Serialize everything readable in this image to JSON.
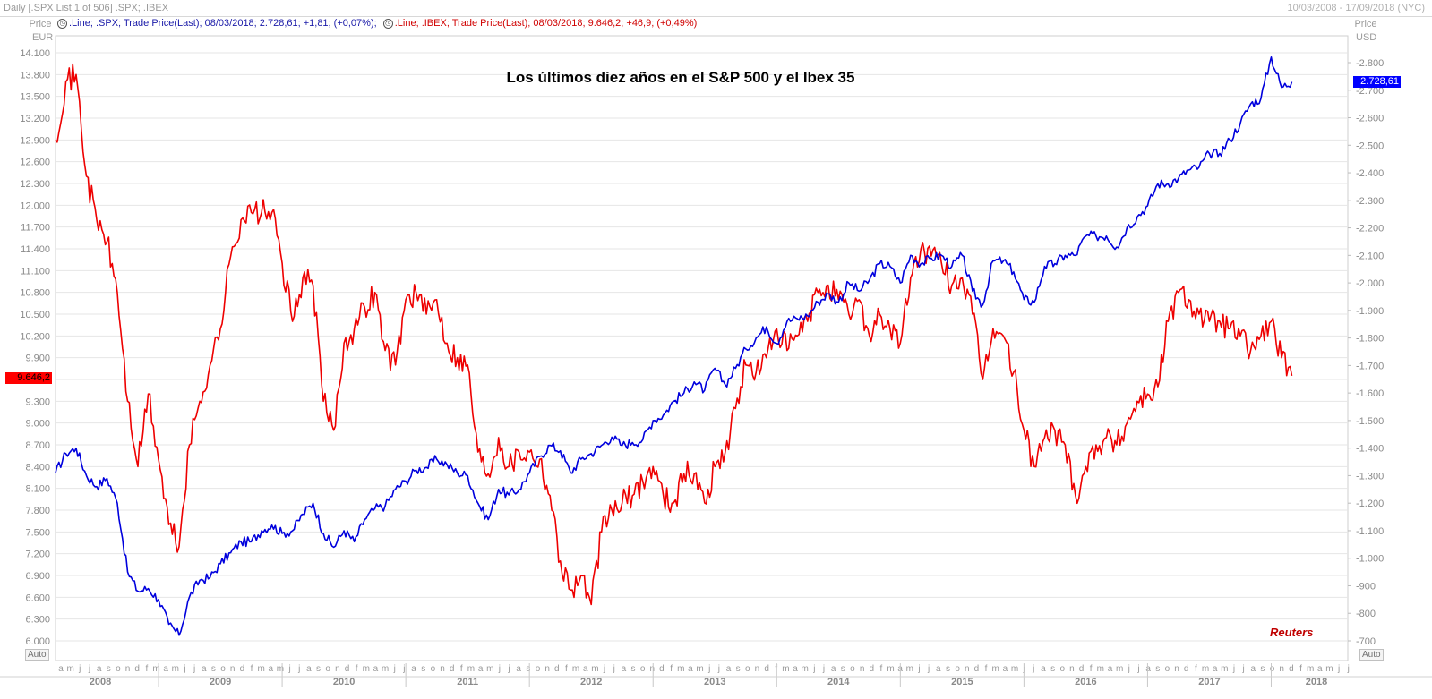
{
  "window": {
    "title_left": "Daily [.SPX List 1 of 506] .SPX; .IBEX",
    "title_right": "10/03/2008 - 17/09/2018 (NYC)"
  },
  "legend": {
    "spx": ".Line; .SPX; Trade Price(Last); 08/03/2018; 2.728,61; +1,81; (+0,07%);",
    "ibex": ".Line; .IBEX; Trade Price(Last); 08/03/2018; 9.646,2; +46,9; (+0,49%)"
  },
  "axis": {
    "left_header": "Price",
    "left_unit": "EUR",
    "right_header": "Price",
    "right_unit": "USD",
    "auto_label": "Auto"
  },
  "tags": {
    "ibex_last": "9.646,2",
    "spx_last": "2.728,61"
  },
  "source": "Reuters",
  "colors": {
    "ibex": "#ee0000",
    "spx": "#0000dd",
    "grid": "#e6e6e6"
  },
  "chart_data": {
    "type": "line",
    "title": "Los últimos diez años en el S&P 500 y el Ibex 35",
    "x_range": [
      "2008-03",
      "2018-08"
    ],
    "y_left": {
      "label": "Price EUR",
      "min": 6000,
      "max": 14100,
      "ticks": [
        "6.000",
        "6.300",
        "6.600",
        "6.900",
        "7.200",
        "7.500",
        "7.800",
        "8.100",
        "8.400",
        "8.700",
        "9.000",
        "9.300",
        "9.600",
        "9.900",
        "10.200",
        "10.500",
        "10.800",
        "11.100",
        "11.400",
        "11.700",
        "12.000",
        "12.300",
        "12.600",
        "12.900",
        "13.200",
        "13.500",
        "13.800",
        "14.100"
      ]
    },
    "y_right": {
      "label": "Price USD",
      "min": 700,
      "max": 2800,
      "ticks": [
        "700",
        "800",
        "900",
        "1.000",
        "1.100",
        "1.200",
        "1.300",
        "1.400",
        "1.500",
        "1.600",
        "1.700",
        "1.800",
        "1.900",
        "2.000",
        "2.100",
        "2.200",
        "2.300",
        "2.400",
        "2.500",
        "2.600",
        "2.700",
        "2.800"
      ]
    },
    "x_month_letters": [
      "a",
      "m",
      "j",
      "j",
      "a",
      "s",
      "o",
      "n",
      "d",
      "f",
      "m",
      "a",
      "m",
      "j",
      "j",
      "a",
      "s",
      "o",
      "n",
      "d",
      "f",
      "m",
      "a",
      "m",
      "j",
      "j",
      "a",
      "s",
      "o",
      "n",
      "d",
      "f",
      "m",
      "a",
      "m",
      "j",
      "j",
      "a",
      "s",
      "o",
      "n",
      "d",
      "f",
      "m",
      "a",
      "m",
      "j",
      "j",
      "a",
      "s",
      "o",
      "n",
      "d",
      "f",
      "m",
      "a",
      "m",
      "j",
      "j",
      "a",
      "s",
      "o",
      "n",
      "d",
      "f",
      "m",
      "a",
      "m",
      "j",
      "j",
      "a",
      "s",
      "o",
      "n",
      "d",
      "f",
      "m",
      "a",
      "m",
      "j",
      "j",
      "a",
      "s",
      "o",
      "n",
      "d",
      "f",
      "m",
      "a",
      "m",
      "j",
      "j",
      "a",
      "s",
      "o",
      "n",
      "d",
      "f",
      "m",
      "a",
      "m",
      "j",
      "j",
      "a",
      "s",
      "o",
      "n",
      "d",
      "f",
      "m",
      "a",
      "m",
      "j",
      "j",
      "a",
      "s",
      "o",
      "n",
      "d",
      "f",
      "m",
      "a",
      "m",
      "j",
      "j",
      "a",
      "s",
      "o",
      "n",
      "d",
      "f",
      "m",
      "a",
      "m",
      "j",
      "j",
      "a",
      "s"
    ],
    "x_years": [
      "2008",
      "2009",
      "2010",
      "2011",
      "2012",
      "2013",
      "2014",
      "2015",
      "2016",
      "2017",
      "2018"
    ],
    "series": [
      {
        "name": ".IBEX",
        "axis": "left",
        "x": [
          "2008-03",
          "2008-04",
          "2008-05",
          "2008-06",
          "2008-07",
          "2008-08",
          "2008-09",
          "2008-10",
          "2008-11",
          "2008-12",
          "2009-01",
          "2009-02",
          "2009-03",
          "2009-04",
          "2009-05",
          "2009-06",
          "2009-07",
          "2009-08",
          "2009-09",
          "2009-10",
          "2009-11",
          "2009-12",
          "2010-01",
          "2010-02",
          "2010-03",
          "2010-04",
          "2010-05",
          "2010-06",
          "2010-07",
          "2010-08",
          "2010-09",
          "2010-10",
          "2010-11",
          "2010-12",
          "2011-01",
          "2011-02",
          "2011-03",
          "2011-04",
          "2011-05",
          "2011-06",
          "2011-07",
          "2011-08",
          "2011-09",
          "2011-10",
          "2011-11",
          "2011-12",
          "2012-01",
          "2012-02",
          "2012-03",
          "2012-04",
          "2012-05",
          "2012-06",
          "2012-07",
          "2012-08",
          "2012-09",
          "2012-10",
          "2012-11",
          "2012-12",
          "2013-01",
          "2013-02",
          "2013-03",
          "2013-04",
          "2013-05",
          "2013-06",
          "2013-07",
          "2013-08",
          "2013-09",
          "2013-10",
          "2013-11",
          "2013-12",
          "2014-01",
          "2014-02",
          "2014-03",
          "2014-04",
          "2014-05",
          "2014-06",
          "2014-07",
          "2014-08",
          "2014-09",
          "2014-10",
          "2014-11",
          "2014-12",
          "2015-01",
          "2015-02",
          "2015-03",
          "2015-04",
          "2015-05",
          "2015-06",
          "2015-07",
          "2015-08",
          "2015-09",
          "2015-10",
          "2015-11",
          "2015-12",
          "2016-01",
          "2016-02",
          "2016-03",
          "2016-04",
          "2016-05",
          "2016-06",
          "2016-07",
          "2016-08",
          "2016-09",
          "2016-10",
          "2016-11",
          "2016-12",
          "2017-01",
          "2017-02",
          "2017-03",
          "2017-04",
          "2017-05",
          "2017-06",
          "2017-07",
          "2017-08",
          "2017-09",
          "2017-10",
          "2017-11",
          "2017-12",
          "2018-01",
          "2018-02",
          "2018-03"
        ],
        "values": [
          12900,
          13700,
          13800,
          12400,
          11800,
          11500,
          10800,
          9300,
          8400,
          9400,
          8500,
          7600,
          7300,
          8700,
          9300,
          9800,
          10300,
          11300,
          11800,
          11900,
          11900,
          11900,
          11200,
          10400,
          11000,
          10900,
          9300,
          8900,
          10100,
          10300,
          10600,
          10800,
          10000,
          9800,
          10700,
          10800,
          10500,
          10700,
          10100,
          9900,
          9800,
          8600,
          8300,
          8800,
          8400,
          8600,
          8600,
          8500,
          8000,
          7100,
          6700,
          6900,
          6500,
          7500,
          7800,
          7900,
          8000,
          8200,
          8400,
          8000,
          7900,
          8300,
          8300,
          7900,
          8400,
          8600,
          9200,
          9800,
          9700,
          9900,
          10300,
          10000,
          10200,
          10400,
          10800,
          10900,
          10700,
          10500,
          10700,
          10200,
          10500,
          10300,
          10100,
          11000,
          11400,
          11300,
          11200,
          10900,
          11000,
          10500,
          9600,
          10300,
          10200,
          9700,
          8900,
          8400,
          8800,
          8900,
          8700,
          8000,
          8400,
          8700,
          8800,
          8700,
          9000,
          9300,
          9400,
          9500,
          10400,
          10800,
          10700,
          10500,
          10400,
          10400,
          10300,
          10200,
          10000,
          10200,
          10400,
          9900,
          9650
        ]
      },
      {
        "name": ".SPX",
        "axis": "right",
        "x": [
          "2008-03",
          "2008-04",
          "2008-05",
          "2008-06",
          "2008-07",
          "2008-08",
          "2008-09",
          "2008-10",
          "2008-11",
          "2008-12",
          "2009-01",
          "2009-02",
          "2009-03",
          "2009-04",
          "2009-05",
          "2009-06",
          "2009-07",
          "2009-08",
          "2009-09",
          "2009-10",
          "2009-11",
          "2009-12",
          "2010-01",
          "2010-02",
          "2010-03",
          "2010-04",
          "2010-05",
          "2010-06",
          "2010-07",
          "2010-08",
          "2010-09",
          "2010-10",
          "2010-11",
          "2010-12",
          "2011-01",
          "2011-02",
          "2011-03",
          "2011-04",
          "2011-05",
          "2011-06",
          "2011-07",
          "2011-08",
          "2011-09",
          "2011-10",
          "2011-11",
          "2011-12",
          "2012-01",
          "2012-02",
          "2012-03",
          "2012-04",
          "2012-05",
          "2012-06",
          "2012-07",
          "2012-08",
          "2012-09",
          "2012-10",
          "2012-11",
          "2012-12",
          "2013-01",
          "2013-02",
          "2013-03",
          "2013-04",
          "2013-05",
          "2013-06",
          "2013-07",
          "2013-08",
          "2013-09",
          "2013-10",
          "2013-11",
          "2013-12",
          "2014-01",
          "2014-02",
          "2014-03",
          "2014-04",
          "2014-05",
          "2014-06",
          "2014-07",
          "2014-08",
          "2014-09",
          "2014-10",
          "2014-11",
          "2014-12",
          "2015-01",
          "2015-02",
          "2015-03",
          "2015-04",
          "2015-05",
          "2015-06",
          "2015-07",
          "2015-08",
          "2015-09",
          "2015-10",
          "2015-11",
          "2015-12",
          "2016-01",
          "2016-02",
          "2016-03",
          "2016-04",
          "2016-05",
          "2016-06",
          "2016-07",
          "2016-08",
          "2016-09",
          "2016-10",
          "2016-11",
          "2016-12",
          "2017-01",
          "2017-02",
          "2017-03",
          "2017-04",
          "2017-05",
          "2017-06",
          "2017-07",
          "2017-08",
          "2017-09",
          "2017-10",
          "2017-11",
          "2017-12",
          "2018-01",
          "2018-02",
          "2018-03"
        ],
        "values": [
          1310,
          1380,
          1400,
          1300,
          1260,
          1290,
          1200,
          950,
          880,
          890,
          850,
          760,
          720,
          860,
          920,
          930,
          980,
          1020,
          1060,
          1060,
          1100,
          1120,
          1090,
          1100,
          1160,
          1200,
          1090,
          1040,
          1100,
          1060,
          1140,
          1180,
          1190,
          1250,
          1280,
          1320,
          1330,
          1360,
          1340,
          1310,
          1300,
          1200,
          1140,
          1250,
          1230,
          1250,
          1310,
          1370,
          1410,
          1390,
          1310,
          1360,
          1380,
          1410,
          1440,
          1410,
          1420,
          1430,
          1500,
          1520,
          1570,
          1600,
          1640,
          1610,
          1690,
          1630,
          1690,
          1760,
          1800,
          1840,
          1780,
          1860,
          1870,
          1880,
          1930,
          1960,
          1930,
          2000,
          1970,
          2010,
          2070,
          2060,
          2000,
          2100,
          2070,
          2090,
          2100,
          2060,
          2100,
          1970,
          1920,
          2080,
          2080,
          2040,
          1940,
          1930,
          2060,
          2070,
          2100,
          2100,
          2170,
          2170,
          2170,
          2130,
          2200,
          2240,
          2280,
          2360,
          2360,
          2380,
          2410,
          2420,
          2470,
          2470,
          2520,
          2580,
          2650,
          2670,
          2820,
          2710,
          2730
        ]
      }
    ]
  }
}
